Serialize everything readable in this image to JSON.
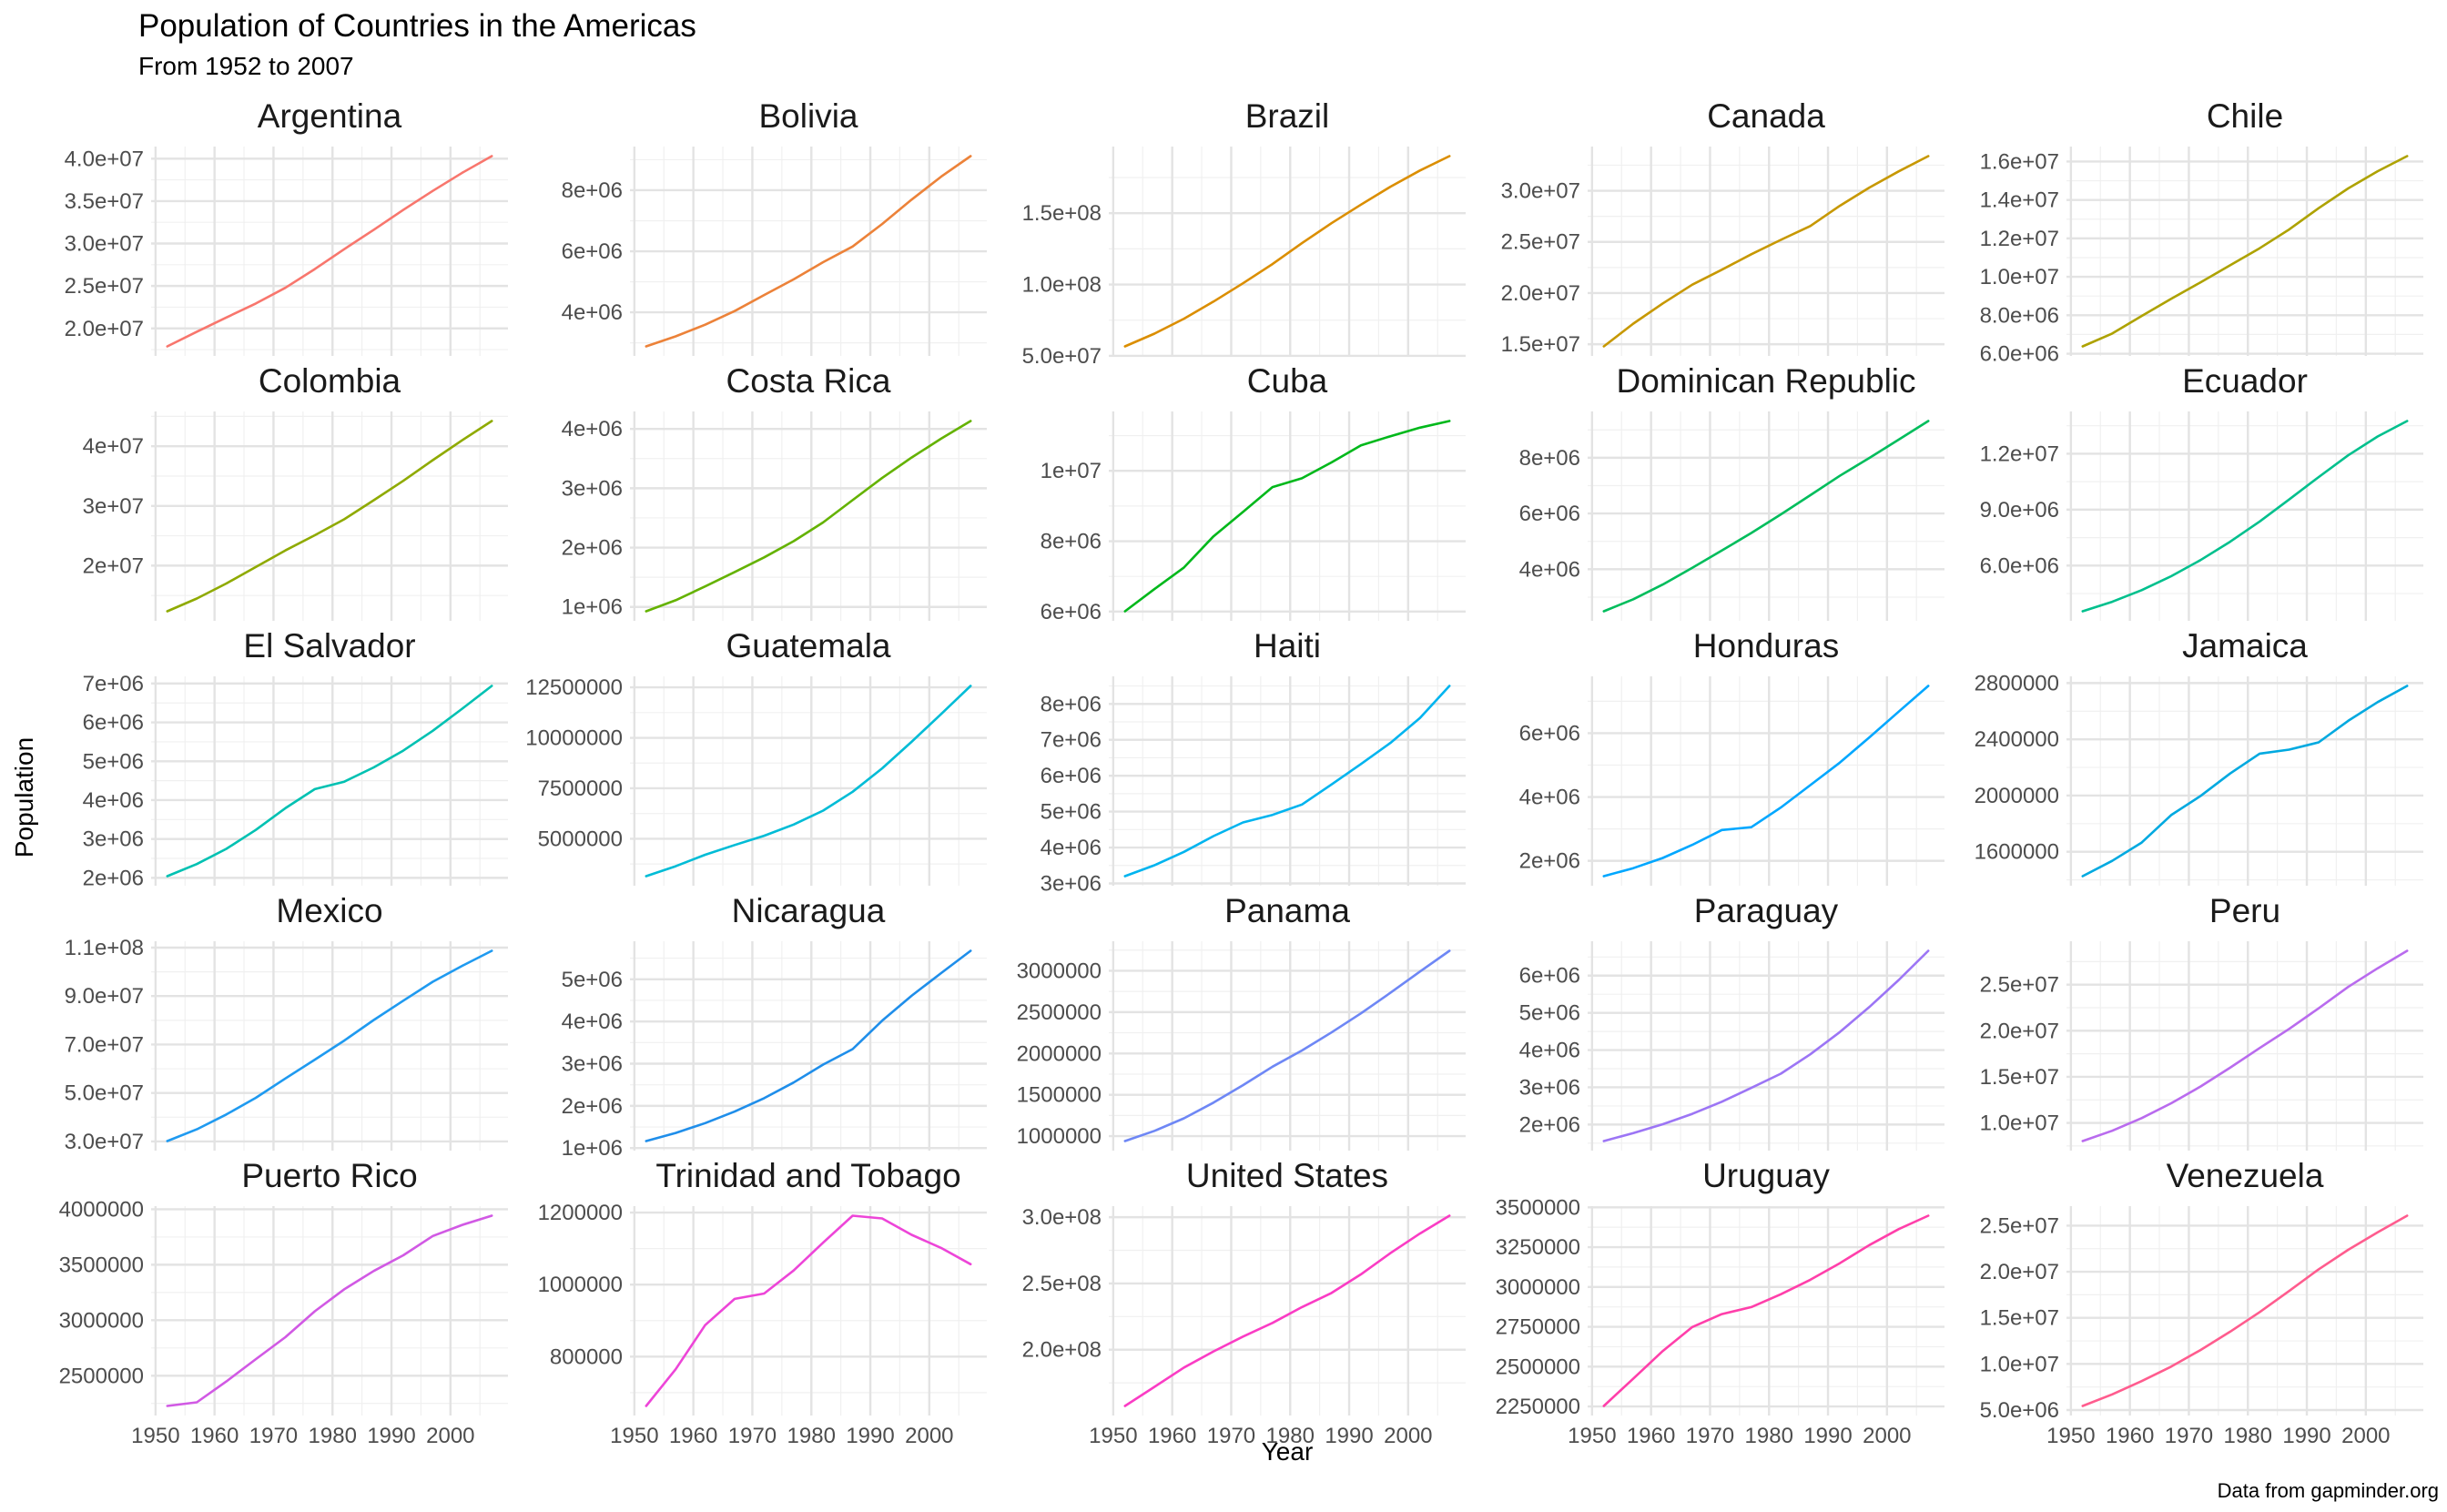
{
  "chart_data": {
    "type": "line",
    "title": "Population of Countries in the Americas",
    "subtitle": "From 1952 to 2007",
    "xlabel": "Year",
    "ylabel": "Population",
    "caption": "Data from gapminder.org",
    "x": [
      1952,
      1957,
      1962,
      1967,
      1972,
      1977,
      1982,
      1987,
      1992,
      1997,
      2002,
      2007
    ],
    "x_ticks": [
      1950,
      1960,
      1970,
      1980,
      1990,
      2000
    ],
    "x_tick_labels": [
      "1950",
      "1960",
      "1970",
      "1980",
      "1990",
      "2000"
    ],
    "xlim": [
      1949.25,
      2009.75
    ],
    "grid": true,
    "legend": "none",
    "facets": [
      {
        "name": "Argentina",
        "color": "#F8766D",
        "values": [
          17876956,
          19610538,
          21283783,
          22934225,
          24779799,
          26983828,
          29341374,
          31620918,
          33958947,
          36203463,
          38331121,
          40301927
        ],
        "y_ticks": [
          20000000,
          25000000,
          30000000,
          35000000,
          40000000
        ],
        "y_tick_labels": [
          "2.0e+07",
          "2.5e+07",
          "3.0e+07",
          "3.5e+07",
          "4.0e+07"
        ]
      },
      {
        "name": "Bolivia",
        "color": "#EC8239",
        "values": [
          2883315,
          3211738,
          3593918,
          4040665,
          4565872,
          5079716,
          5642224,
          6156369,
          6893451,
          7693188,
          8445134,
          9119152
        ],
        "y_ticks": [
          4000000,
          6000000,
          8000000
        ],
        "y_tick_labels": [
          "4e+06",
          "6e+06",
          "8e+06"
        ]
      },
      {
        "name": "Brazil",
        "color": "#DB8E00",
        "values": [
          56602560,
          65551171,
          76039390,
          88049823,
          100840058,
          114313951,
          128962939,
          142938076,
          155975974,
          168546719,
          179914212,
          190010647
        ],
        "y_ticks": [
          50000000,
          100000000,
          150000000
        ],
        "y_tick_labels": [
          "5.0e+07",
          "1.0e+08",
          "1.5e+08"
        ]
      },
      {
        "name": "Canada",
        "color": "#C79800",
        "values": [
          14785584,
          17010154,
          18985849,
          20819767,
          22284500,
          23796400,
          25201900,
          26549700,
          28523502,
          30305843,
          31902268,
          33390141
        ],
        "y_ticks": [
          15000000,
          20000000,
          25000000,
          30000000
        ],
        "y_tick_labels": [
          "1.5e+07",
          "2.0e+07",
          "2.5e+07",
          "3.0e+07"
        ]
      },
      {
        "name": "Chile",
        "color": "#AEA200",
        "values": [
          6377619,
          7048426,
          7961258,
          8858908,
          9717524,
          10599793,
          11487112,
          12463354,
          13572994,
          14599929,
          15497046,
          16284741
        ],
        "y_ticks": [
          6000000,
          8000000,
          10000000,
          12000000,
          14000000,
          16000000
        ],
        "y_tick_labels": [
          "6.0e+06",
          "8.0e+06",
          "1.0e+07",
          "1.2e+07",
          "1.4e+07",
          "1.6e+07"
        ]
      },
      {
        "name": "Colombia",
        "color": "#8FAA00",
        "values": [
          12350771,
          14485993,
          17009885,
          19764027,
          22542890,
          25094412,
          27764644,
          30964245,
          34202721,
          37657830,
          41008227,
          44227550
        ],
        "y_ticks": [
          20000000,
          30000000,
          40000000
        ],
        "y_tick_labels": [
          "2e+07",
          "3e+07",
          "4e+07"
        ]
      },
      {
        "name": "Costa Rica",
        "color": "#64B200",
        "values": [
          926317,
          1112300,
          1345187,
          1588717,
          1834796,
          2108457,
          2424367,
          2799811,
          3173216,
          3518107,
          3834934,
          4133884
        ],
        "y_ticks": [
          1000000,
          2000000,
          3000000,
          4000000
        ],
        "y_tick_labels": [
          "1e+06",
          "2e+06",
          "3e+06",
          "4e+06"
        ]
      },
      {
        "name": "Cuba",
        "color": "#00B81B",
        "values": [
          6007797,
          6640752,
          7254373,
          8139332,
          8831348,
          9537988,
          9789224,
          10239839,
          10723260,
          10983007,
          11226999,
          11416987
        ],
        "y_ticks": [
          6000000,
          8000000,
          10000000
        ],
        "y_tick_labels": [
          "6e+06",
          "8e+06",
          "1e+07"
        ]
      },
      {
        "name": "Dominican Republic",
        "color": "#00BD5C",
        "values": [
          2491346,
          2923186,
          3453434,
          4049146,
          4671329,
          5302800,
          5968349,
          6655297,
          7351181,
          7992357,
          8650322,
          9319622
        ],
        "y_ticks": [
          4000000,
          6000000,
          8000000
        ],
        "y_tick_labels": [
          "4e+06",
          "6e+06",
          "8e+06"
        ]
      },
      {
        "name": "Ecuador",
        "color": "#00C08D",
        "values": [
          3548753,
          4058385,
          4681707,
          5432424,
          6298651,
          7278866,
          8365850,
          9545158,
          10748394,
          11911819,
          12921234,
          13755680
        ],
        "y_ticks": [
          6000000,
          9000000,
          12000000
        ],
        "y_tick_labels": [
          "6.0e+06",
          "9.0e+06",
          "1.2e+07"
        ]
      },
      {
        "name": "El Salvador",
        "color": "#00C1B2",
        "values": [
          2042865,
          2355805,
          2747687,
          3232927,
          3790903,
          4282586,
          4474873,
          4842194,
          5274649,
          5783439,
          6353681,
          6939688
        ],
        "y_ticks": [
          2000000,
          3000000,
          4000000,
          5000000,
          6000000,
          7000000
        ],
        "y_tick_labels": [
          "2e+06",
          "3e+06",
          "4e+06",
          "5e+06",
          "6e+06",
          "7e+06"
        ]
      },
      {
        "name": "Guatemala",
        "color": "#00BCD6",
        "values": [
          3146381,
          3640876,
          4208858,
          4690773,
          5149581,
          5703430,
          6395630,
          7326406,
          8486949,
          9803875,
          11178650,
          12572928
        ],
        "y_ticks": [
          5000000,
          7500000,
          10000000,
          12500000
        ],
        "y_tick_labels": [
          "5000000",
          "7500000",
          "10000000",
          "12500000"
        ]
      },
      {
        "name": "Haiti",
        "color": "#00B4EF",
        "values": [
          3201488,
          3507701,
          3880130,
          4318137,
          4698301,
          4908554,
          5198399,
          5756203,
          6326682,
          6913545,
          7607651,
          8502814
        ],
        "y_ticks": [
          3000000,
          4000000,
          5000000,
          6000000,
          7000000,
          8000000
        ],
        "y_tick_labels": [
          "3e+06",
          "4e+06",
          "5e+06",
          "6e+06",
          "7e+06",
          "8e+06"
        ]
      },
      {
        "name": "Honduras",
        "color": "#00A7FF",
        "values": [
          1517453,
          1770390,
          2090162,
          2500689,
          2965146,
          3055235,
          3669448,
          4372203,
          5077347,
          5867957,
          6677328,
          7483763
        ],
        "y_ticks": [
          2000000,
          4000000,
          6000000
        ],
        "y_tick_labels": [
          "2e+06",
          "4e+06",
          "6e+06"
        ]
      },
      {
        "name": "Jamaica",
        "color": "#00A9E0",
        "values": [
          1426095,
          1535090,
          1665128,
          1861096,
          1997616,
          2156814,
          2298309,
          2326606,
          2378618,
          2531311,
          2664659,
          2780132
        ],
        "y_ticks": [
          1600000,
          2000000,
          2400000,
          2800000
        ],
        "y_tick_labels": [
          "1600000",
          "2000000",
          "2400000",
          "2800000"
        ]
      },
      {
        "name": "Mexico",
        "color": "#1F9AF0",
        "values": [
          30144317,
          35015548,
          41121485,
          47995559,
          55984294,
          63759976,
          71640904,
          80122492,
          88111030,
          95895146,
          102479927,
          108700891
        ],
        "y_ticks": [
          30000000,
          50000000,
          70000000,
          90000000,
          110000000
        ],
        "y_tick_labels": [
          "3.0e+07",
          "5.0e+07",
          "7.0e+07",
          "9.0e+07",
          "1.1e+08"
        ]
      },
      {
        "name": "Nicaragua",
        "color": "#1F8EEA",
        "values": [
          1165790,
          1358828,
          1590597,
          1865490,
          2182908,
          2554598,
          2979423,
          3344353,
          4017939,
          4609572,
          5146848,
          5675356
        ],
        "y_ticks": [
          1000000,
          2000000,
          3000000,
          4000000,
          5000000
        ],
        "y_tick_labels": [
          "1e+06",
          "2e+06",
          "3e+06",
          "4e+06",
          "5e+06"
        ]
      },
      {
        "name": "Panama",
        "color": "#6E87F5",
        "values": [
          940080,
          1063506,
          1215725,
          1405486,
          1616384,
          1839782,
          2036305,
          2253639,
          2484997,
          2734531,
          2990875,
          3242173
        ],
        "y_ticks": [
          1000000,
          1500000,
          2000000,
          2500000,
          3000000
        ],
        "y_tick_labels": [
          "1000000",
          "1500000",
          "2000000",
          "2500000",
          "3000000"
        ]
      },
      {
        "name": "Paraguay",
        "color": "#9C75F5",
        "values": [
          1555876,
          1770902,
          2009813,
          2287985,
          2614104,
          2984494,
          3366439,
          3886512,
          4483945,
          5154123,
          5884491,
          6667147
        ],
        "y_ticks": [
          2000000,
          3000000,
          4000000,
          5000000,
          6000000
        ],
        "y_tick_labels": [
          "2e+06",
          "3e+06",
          "4e+06",
          "5e+06",
          "6e+06"
        ]
      },
      {
        "name": "Peru",
        "color": "#B96BEE",
        "values": [
          8025700,
          9146100,
          10516500,
          12132200,
          13954700,
          15990099,
          18125129,
          20195924,
          22430449,
          24748122,
          26769436,
          28674757
        ],
        "y_ticks": [
          10000000,
          15000000,
          20000000,
          25000000
        ],
        "y_tick_labels": [
          "1.0e+07",
          "1.5e+07",
          "2.0e+07",
          "2.5e+07"
        ]
      },
      {
        "name": "Puerto Rico",
        "color": "#D159E4",
        "values": [
          2227000,
          2260000,
          2448046,
          2648961,
          2847132,
          3080828,
          3279001,
          3444468,
          3585176,
          3759430,
          3859606,
          3942491
        ],
        "y_ticks": [
          2500000,
          3000000,
          3500000,
          4000000
        ],
        "y_tick_labels": [
          "2500000",
          "3000000",
          "3500000",
          "4000000"
        ]
      },
      {
        "name": "Trinidad and Tobago",
        "color": "#ED45D8",
        "values": [
          662850,
          764900,
          887498,
          960155,
          975199,
          1039009,
          1116479,
          1191336,
          1183669,
          1138101,
          1101832,
          1056608
        ],
        "y_ticks": [
          800000,
          1000000,
          1200000
        ],
        "y_tick_labels": [
          "800000",
          "1000000",
          "1200000"
        ]
      },
      {
        "name": "United States",
        "color": "#FA3CC4",
        "values": [
          157553000,
          171984000,
          186538000,
          198712000,
          209896000,
          220239000,
          232187835,
          242803533,
          256894189,
          272911760,
          287675526,
          301139947
        ],
        "y_ticks": [
          200000000,
          250000000,
          300000000
        ],
        "y_tick_labels": [
          "2.0e+08",
          "2.5e+08",
          "3.0e+08"
        ]
      },
      {
        "name": "Uruguay",
        "color": "#FF3FAA",
        "values": [
          2252965,
          2424959,
          2598466,
          2748579,
          2829526,
          2873520,
          2953997,
          3045153,
          3149262,
          3262838,
          3363085,
          3447496
        ],
        "y_ticks": [
          2250000,
          2500000,
          2750000,
          3000000,
          3250000,
          3500000
        ],
        "y_tick_labels": [
          "2250000",
          "2500000",
          "2750000",
          "3000000",
          "3250000",
          "3500000"
        ]
      },
      {
        "name": "Venezuela",
        "color": "#FF5C8E",
        "values": [
          5439568,
          6702668,
          8143375,
          9709552,
          11515649,
          13503563,
          15620766,
          17910182,
          20265563,
          22374398,
          24287670,
          26084662
        ],
        "y_ticks": [
          5000000,
          10000000,
          15000000,
          20000000,
          25000000
        ],
        "y_tick_labels": [
          "5.0e+06",
          "1.0e+07",
          "1.5e+07",
          "2.0e+07",
          "2.5e+07"
        ]
      }
    ]
  }
}
